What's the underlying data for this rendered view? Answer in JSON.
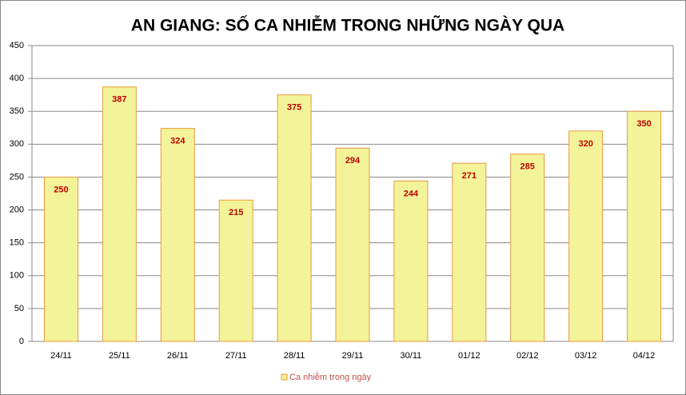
{
  "chart_data": {
    "type": "bar",
    "title": "AN GIANG: SỐ CA NHIỄM TRONG NHỮNG NGÀY QUA",
    "categories": [
      "24/11",
      "25/11",
      "26/11",
      "27/11",
      "28/11",
      "29/11",
      "30/11",
      "01/12",
      "02/12",
      "03/12",
      "04/12"
    ],
    "series": [
      {
        "name": "Ca nhiễm trong ngày",
        "color": "#f3f39a",
        "values": [
          250,
          387,
          324,
          215,
          375,
          294,
          244,
          271,
          285,
          320,
          350
        ]
      }
    ],
    "ylim": [
      0,
      450
    ],
    "yticks": [
      0,
      50,
      100,
      150,
      200,
      250,
      300,
      350,
      400,
      450
    ],
    "grid": true,
    "legend": "bottom"
  }
}
